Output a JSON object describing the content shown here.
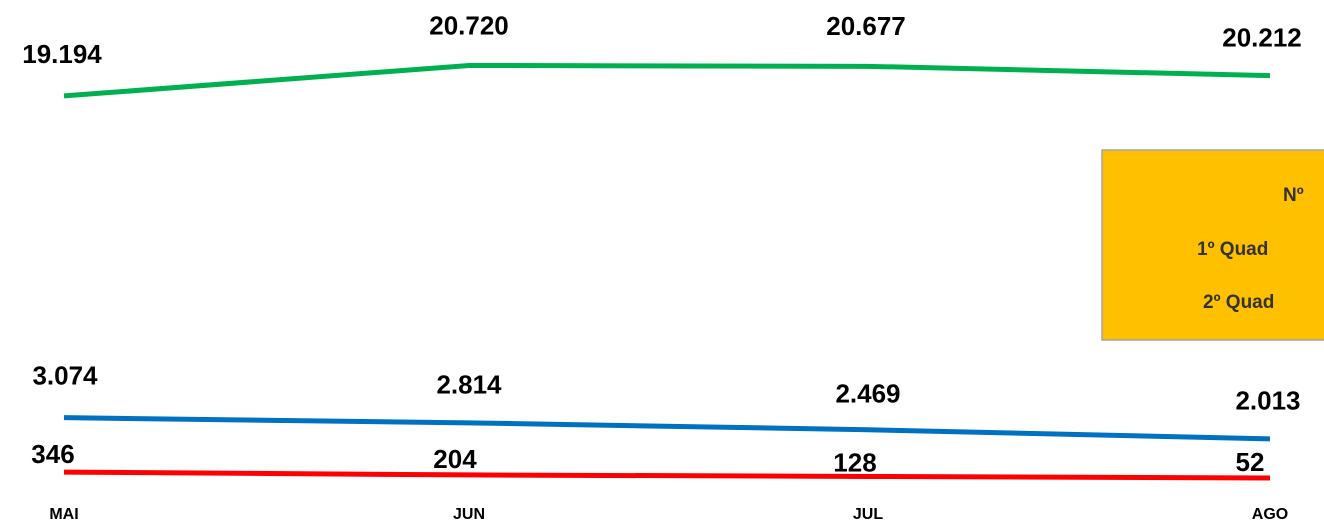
{
  "chart_data": {
    "type": "line",
    "categories": [
      "MAI",
      "JUN",
      "JUL",
      "AGO"
    ],
    "ylim": [
      0,
      24000
    ],
    "series": [
      {
        "color": "#00b050",
        "values": [
          19194,
          20720,
          20677,
          20212
        ],
        "value_labels": [
          "19.194",
          "20.720",
          "20.677",
          "20.212"
        ]
      },
      {
        "color": "#0070c0",
        "values": [
          3074,
          2814,
          2469,
          2013
        ],
        "value_labels": [
          "3.074",
          "2.814",
          "2.469",
          "2.013"
        ]
      },
      {
        "color": "#ff0000",
        "values": [
          346,
          204,
          128,
          52
        ],
        "value_labels": [
          "346",
          "204",
          "128",
          "52"
        ]
      }
    ],
    "legend_box": {
      "color": "#ffc000",
      "lines": [
        "Nº",
        "1º Quad",
        "2º Quad"
      ]
    }
  }
}
